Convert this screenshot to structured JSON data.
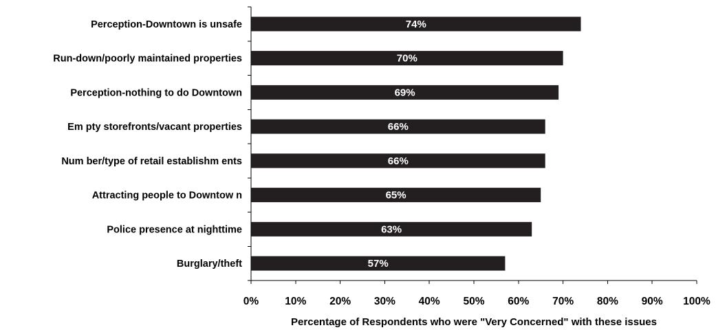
{
  "chart_data": {
    "type": "bar",
    "orientation": "horizontal",
    "categories": [
      "Perception-Downtown is unsafe",
      "Run-down/poorly maintained properties",
      "Perception-nothing to do Downtown",
      "Em pty storefronts/vacant properties",
      "Num ber/type of retail establishm ents",
      "Attracting people to Downtow n",
      "Police presence at nighttime",
      "Burglary/theft"
    ],
    "values": [
      74,
      70,
      69,
      66,
      66,
      65,
      63,
      57
    ],
    "data_labels": [
      "74%",
      "70%",
      "69%",
      "66%",
      "66%",
      "65%",
      "63%",
      "57%"
    ],
    "xlim": [
      0,
      100
    ],
    "xticks": [
      "0%",
      "10%",
      "20%",
      "30%",
      "40%",
      "50%",
      "60%",
      "70%",
      "80%",
      "90%",
      "100%"
    ],
    "xlabel": "Percentage of Respondents who were \"Very Concerned\" with these issues",
    "ylabel": "",
    "title": "",
    "grid": false,
    "legend": "none",
    "bar_color": "#231f20",
    "data_label_color": "#ffffff"
  }
}
